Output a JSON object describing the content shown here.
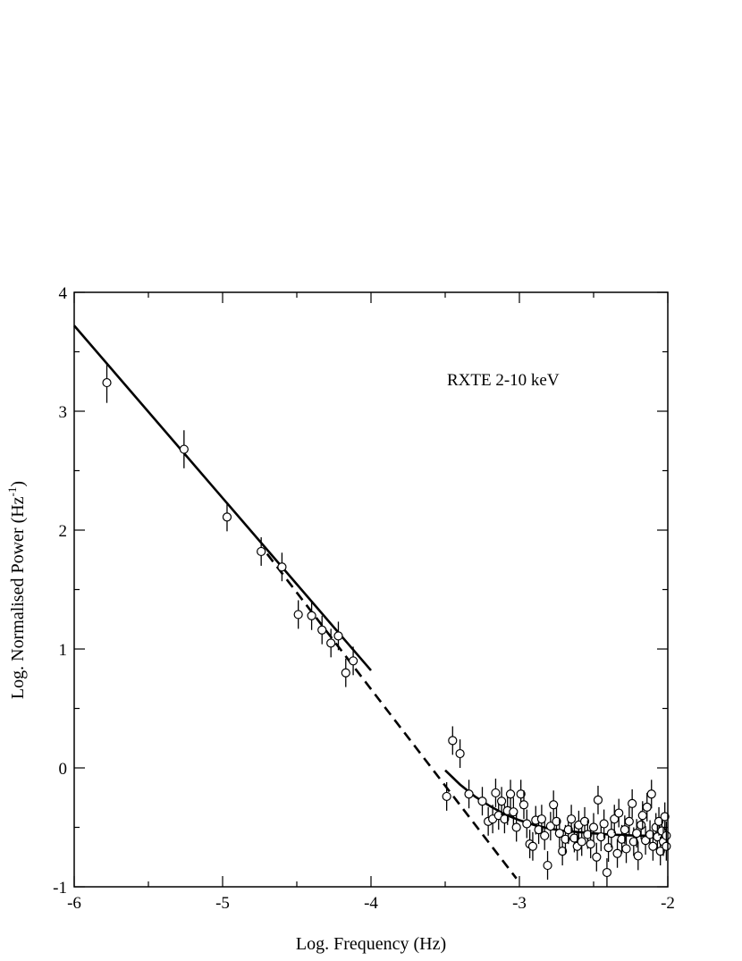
{
  "chart_data": {
    "type": "scatter",
    "xlabel": "Log. Frequency (Hz)",
    "ylabel_main": "Log. Normalised Power (Hz",
    "ylabel_sup": "-1",
    "ylabel_close": ")",
    "annotation": "RXTE 2-10 keV",
    "xlim": [
      -6,
      -2
    ],
    "ylim": [
      -1,
      4
    ],
    "x_ticks": [
      -6,
      -5,
      -4,
      -3,
      -2
    ],
    "y_ticks": [
      -1,
      0,
      1,
      2,
      3,
      4
    ],
    "x_tick_labels": [
      "-6",
      "-5",
      "-4",
      "-3",
      "-2"
    ],
    "y_tick_labels": [
      "-1",
      "0",
      "1",
      "2",
      "3",
      "4"
    ],
    "grid": false,
    "low_freq_points": [
      {
        "x": -5.78,
        "y": 3.24,
        "err": 0.17
      },
      {
        "x": -5.26,
        "y": 2.68,
        "err": 0.16
      },
      {
        "x": -4.97,
        "y": 2.11,
        "err": 0.12
      },
      {
        "x": -4.74,
        "y": 1.82,
        "err": 0.12
      },
      {
        "x": -4.6,
        "y": 1.69,
        "err": 0.12
      },
      {
        "x": -4.49,
        "y": 1.29,
        "err": 0.12
      },
      {
        "x": -4.4,
        "y": 1.28,
        "err": 0.12
      },
      {
        "x": -4.33,
        "y": 1.16,
        "err": 0.12
      },
      {
        "x": -4.27,
        "y": 1.05,
        "err": 0.12
      },
      {
        "x": -4.22,
        "y": 1.11,
        "err": 0.12
      },
      {
        "x": -4.17,
        "y": 0.8,
        "err": 0.12
      },
      {
        "x": -4.12,
        "y": 0.9,
        "err": 0.12
      }
    ],
    "high_freq_points": [
      {
        "x": -3.49,
        "y": -0.24
      },
      {
        "x": -3.45,
        "y": 0.23
      },
      {
        "x": -3.4,
        "y": 0.12
      },
      {
        "x": -3.34,
        "y": -0.22
      },
      {
        "x": -3.25,
        "y": -0.28
      },
      {
        "x": -3.21,
        "y": -0.45
      },
      {
        "x": -3.18,
        "y": -0.43
      },
      {
        "x": -3.16,
        "y": -0.21
      },
      {
        "x": -3.14,
        "y": -0.4
      },
      {
        "x": -3.12,
        "y": -0.28
      },
      {
        "x": -3.1,
        "y": -0.43
      },
      {
        "x": -3.08,
        "y": -0.36
      },
      {
        "x": -3.06,
        "y": -0.22
      },
      {
        "x": -3.04,
        "y": -0.37
      },
      {
        "x": -3.02,
        "y": -0.5
      },
      {
        "x": -2.99,
        "y": -0.22
      },
      {
        "x": -2.97,
        "y": -0.31
      },
      {
        "x": -2.95,
        "y": -0.47
      },
      {
        "x": -2.93,
        "y": -0.64
      },
      {
        "x": -2.91,
        "y": -0.66
      },
      {
        "x": -2.89,
        "y": -0.44
      },
      {
        "x": -2.87,
        "y": -0.52
      },
      {
        "x": -2.85,
        "y": -0.43
      },
      {
        "x": -2.83,
        "y": -0.57
      },
      {
        "x": -2.81,
        "y": -0.82
      },
      {
        "x": -2.79,
        "y": -0.49
      },
      {
        "x": -2.77,
        "y": -0.31
      },
      {
        "x": -2.75,
        "y": -0.45
      },
      {
        "x": -2.73,
        "y": -0.55
      },
      {
        "x": -2.71,
        "y": -0.7
      },
      {
        "x": -2.69,
        "y": -0.6
      },
      {
        "x": -2.67,
        "y": -0.52
      },
      {
        "x": -2.65,
        "y": -0.43
      },
      {
        "x": -2.63,
        "y": -0.59
      },
      {
        "x": -2.61,
        "y": -0.66
      },
      {
        "x": -2.6,
        "y": -0.48
      },
      {
        "x": -2.58,
        "y": -0.62
      },
      {
        "x": -2.56,
        "y": -0.45
      },
      {
        "x": -2.54,
        "y": -0.56
      },
      {
        "x": -2.52,
        "y": -0.64
      },
      {
        "x": -2.5,
        "y": -0.5
      },
      {
        "x": -2.48,
        "y": -0.75
      },
      {
        "x": -2.47,
        "y": -0.27
      },
      {
        "x": -2.45,
        "y": -0.58
      },
      {
        "x": -2.43,
        "y": -0.47
      },
      {
        "x": -2.41,
        "y": -0.88
      },
      {
        "x": -2.4,
        "y": -0.67
      },
      {
        "x": -2.38,
        "y": -0.55
      },
      {
        "x": -2.36,
        "y": -0.43
      },
      {
        "x": -2.34,
        "y": -0.72
      },
      {
        "x": -2.33,
        "y": -0.38
      },
      {
        "x": -2.31,
        "y": -0.6
      },
      {
        "x": -2.29,
        "y": -0.52
      },
      {
        "x": -2.28,
        "y": -0.68
      },
      {
        "x": -2.26,
        "y": -0.45
      },
      {
        "x": -2.24,
        "y": -0.3
      },
      {
        "x": -2.23,
        "y": -0.62
      },
      {
        "x": -2.21,
        "y": -0.55
      },
      {
        "x": -2.2,
        "y": -0.74
      },
      {
        "x": -2.18,
        "y": -0.48
      },
      {
        "x": -2.17,
        "y": -0.4
      },
      {
        "x": -2.15,
        "y": -0.61
      },
      {
        "x": -2.14,
        "y": -0.33
      },
      {
        "x": -2.12,
        "y": -0.56
      },
      {
        "x": -2.11,
        "y": -0.22
      },
      {
        "x": -2.1,
        "y": -0.66
      },
      {
        "x": -2.08,
        "y": -0.5
      },
      {
        "x": -2.07,
        "y": -0.58
      },
      {
        "x": -2.06,
        "y": -0.45
      },
      {
        "x": -2.05,
        "y": -0.7
      },
      {
        "x": -2.04,
        "y": -0.53
      },
      {
        "x": -2.03,
        "y": -0.62
      },
      {
        "x": -2.02,
        "y": -0.41
      },
      {
        "x": -2.01,
        "y": -0.57
      },
      {
        "x": -2.01,
        "y": -0.66
      }
    ],
    "high_freq_err": 0.12,
    "solid_fit_low": {
      "x": [
        -6.0,
        -4.0
      ],
      "y": [
        3.72,
        0.82
      ]
    },
    "dashed_extension": {
      "x": [
        -4.7,
        -3.02
      ],
      "y": [
        1.8,
        -0.93
      ]
    },
    "solid_fit_high": {
      "x": [
        -3.5,
        -3.4,
        -3.3,
        -3.2,
        -3.1,
        -3.0,
        -2.9,
        -2.8,
        -2.7,
        -2.6,
        -2.5,
        -2.4,
        -2.3,
        -2.2,
        -2.1,
        -2.0
      ],
      "y": [
        -0.02,
        -0.14,
        -0.24,
        -0.32,
        -0.39,
        -0.44,
        -0.48,
        -0.51,
        -0.53,
        -0.54,
        -0.55,
        -0.56,
        -0.565,
        -0.57,
        -0.57,
        -0.575
      ]
    }
  }
}
